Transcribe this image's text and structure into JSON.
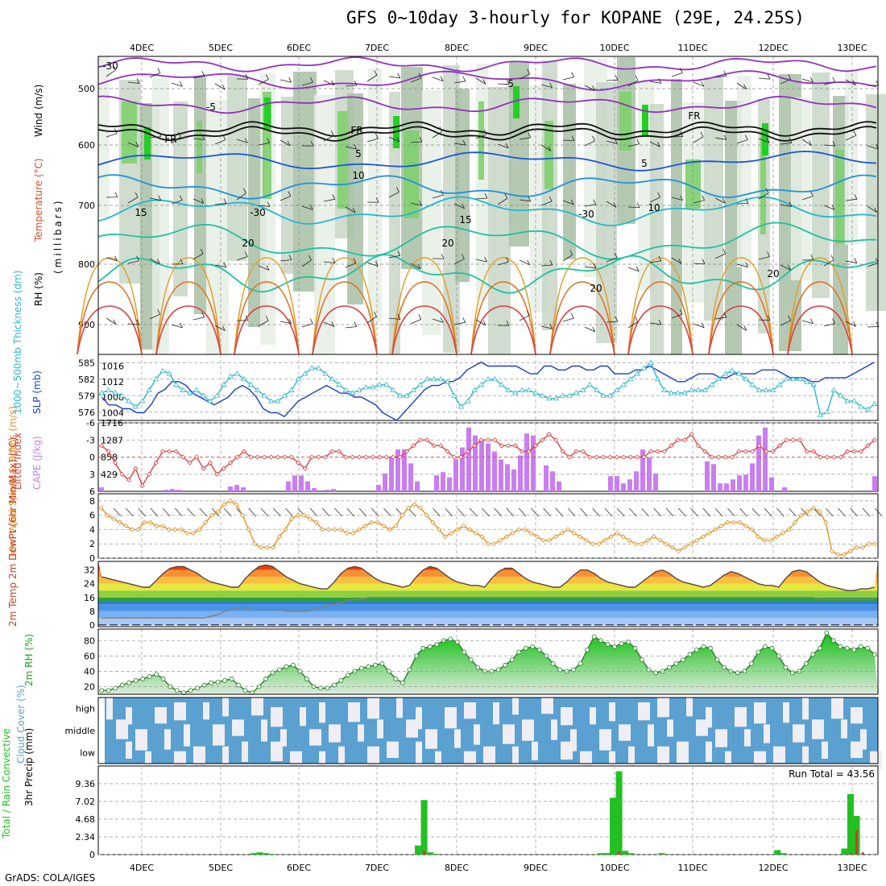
{
  "title": "GFS 0~10day 3-hourly for KOPANE (29E, 24.25S)",
  "footer": "GrADS: COLA/IGES",
  "run_total": "Run Total = 43.56",
  "colors": {
    "green_rh": "#22c022",
    "cape": "#c87ef0",
    "lifted": "#e04040",
    "slp": "#1a3fd0",
    "thick": "#30b8c8",
    "wind": "#e09020",
    "cloud": "#5aa0d0",
    "rain": "#22c022",
    "conv": "#e03030"
  },
  "chart_data": [
    {
      "type": "contour",
      "name": "upper",
      "xlabels": [
        "4DEC",
        "5DEC",
        "6DEC",
        "7DEC",
        "8DEC",
        "9DEC",
        "10DEC",
        "11DEC",
        "12DEC",
        "13DEC"
      ],
      "ylabel_parts": [
        "Wind (m/s)",
        "Temperature (°C)",
        "RH (%)",
        "(millibars)"
      ],
      "ticks": [
        "500",
        "600",
        "700",
        "800",
        "900"
      ],
      "contour_labels": [
        "-5",
        "-5",
        "FR",
        "FR",
        "FR",
        "5",
        "5",
        "10",
        "10",
        "15",
        "15",
        "20",
        "20",
        "20",
        "20",
        "-30",
        "-30",
        "-30"
      ]
    },
    {
      "type": "line",
      "name": "slp-thickness",
      "ylabel_left": "1000~500mb Thickness (dm)",
      "ylabel_right": "SLP (mb)",
      "ticks_left": [
        "585",
        "582",
        "579",
        "576"
      ],
      "ticks_right": [
        "1016",
        "1012",
        "1008",
        "1004"
      ],
      "slp": [
        1008,
        1006,
        1006,
        1005,
        1005,
        1004,
        1004,
        1006,
        1009,
        1010,
        1012,
        1012,
        1011,
        1009,
        1008,
        1007,
        1006,
        1007,
        1008,
        1010,
        1011,
        1010,
        1008,
        1005,
        1004,
        1004,
        1003,
        1005,
        1007,
        1008,
        1009,
        1010,
        1011,
        1010,
        1009,
        1009,
        1008,
        1008,
        1007,
        1006,
        1004,
        1003,
        1002,
        1004,
        1006,
        1008,
        1010,
        1011,
        1011,
        1012,
        1012,
        1013,
        1015,
        1016,
        1017,
        1016,
        1016,
        1016,
        1016,
        1016,
        1015,
        1014,
        1014,
        1016,
        1016,
        1015,
        1015,
        1016,
        1016,
        1015,
        1015,
        1016,
        1016,
        1014,
        1014,
        1014,
        1015,
        1015,
        1016,
        1015,
        1014,
        1013,
        1012,
        1012,
        1013,
        1014,
        1014,
        1014,
        1013,
        1013,
        1014,
        1014,
        1014,
        1014,
        1015,
        1015,
        1015,
        1014,
        1013,
        1013,
        1013,
        1012,
        1012,
        1013,
        1013,
        1013,
        1013,
        1014,
        1015,
        1016,
        1017
      ],
      "thickness": [
        579.5,
        580,
        579.5,
        579,
        578,
        577,
        578,
        580,
        582,
        583.5,
        583,
        581,
        580,
        579.5,
        580,
        579,
        578,
        579,
        581,
        582.5,
        583,
        582,
        581,
        580,
        579,
        578,
        578,
        579,
        580,
        582,
        583,
        584,
        584,
        583,
        582,
        581,
        580,
        579.5,
        580,
        580.5,
        580.5,
        581,
        581,
        580,
        579,
        579,
        580,
        581,
        582,
        582,
        582,
        581.5,
        579,
        577,
        578,
        580,
        581,
        582,
        582,
        581,
        580,
        579.5,
        580,
        580,
        579.5,
        579,
        578.5,
        578.5,
        579,
        579,
        579.5,
        580,
        581,
        580,
        579,
        579,
        580,
        581,
        582,
        583,
        584,
        585,
        582,
        580,
        579.5,
        579.5,
        579.5,
        580,
        580,
        580,
        581,
        582,
        583,
        583.5,
        583,
        582,
        581,
        580,
        580,
        580,
        581,
        582,
        582,
        582,
        581.5,
        581,
        575.5,
        576,
        580,
        579,
        578,
        578,
        577,
        576.5,
        577.5
      ]
    },
    {
      "type": "bar",
      "name": "cape-lifted",
      "ylabel_left": "Lifted Index",
      "ylabel_right": "CAPE (J/kg)",
      "ticks_left": [
        "-6",
        "-3",
        "0",
        "3",
        "6"
      ],
      "ticks_right": [
        "1716",
        "1287",
        "858",
        "429"
      ],
      "cape": [
        100,
        0,
        0,
        0,
        0,
        0,
        0,
        0,
        0,
        0,
        40,
        60,
        40,
        0,
        0,
        0,
        0,
        0,
        0,
        0,
        120,
        160,
        100,
        0,
        0,
        0,
        0,
        0,
        0,
        250,
        400,
        400,
        250,
        80,
        0,
        40,
        60,
        0,
        0,
        0,
        0,
        0,
        0,
        160,
        450,
        850,
        1050,
        1050,
        700,
        250,
        0,
        0,
        400,
        480,
        350,
        800,
        1100,
        1600,
        1400,
        1300,
        1200,
        1000,
        800,
        680,
        550,
        900,
        1450,
        1400,
        0,
        650,
        500,
        250,
        0,
        0,
        0,
        0,
        0,
        0,
        0,
        380,
        380,
        200,
        300,
        500,
        1050,
        850,
        450,
        0,
        0,
        0,
        0,
        0,
        0,
        0,
        750,
        680,
        200,
        200,
        300,
        400,
        420,
        700,
        1400,
        1600,
        350,
        0,
        100,
        0,
        0,
        0,
        0,
        0,
        0,
        0,
        0,
        0,
        0,
        0,
        0,
        0,
        380
      ],
      "lifted": [
        -2,
        -1,
        1,
        3,
        4,
        2,
        5,
        3,
        1,
        -1,
        -1,
        -1,
        0,
        1,
        0,
        2,
        1,
        3,
        2,
        1,
        0,
        -1,
        0,
        0,
        0,
        0,
        0,
        0,
        0,
        1,
        2,
        0,
        0,
        0,
        -1,
        -1,
        0,
        0,
        0,
        0,
        0,
        0,
        0,
        0,
        0,
        -1,
        -2,
        -3,
        -3,
        -2,
        -2,
        -1,
        0,
        0,
        -1,
        -2,
        -3,
        -3,
        -3,
        -2,
        -2,
        -2,
        -1,
        -1,
        -2,
        -3,
        -4,
        -3,
        -1,
        0,
        -1,
        -1,
        0,
        0,
        0,
        0,
        0,
        0,
        0,
        0,
        0,
        -1,
        -1,
        -1,
        -2,
        -3,
        -3,
        -4,
        -2,
        -1,
        0,
        0,
        0,
        0,
        -1,
        -1,
        -1,
        -2,
        -1,
        -1,
        -2,
        -3,
        -3,
        -3,
        -1,
        -1,
        0,
        0,
        0,
        0,
        -1,
        -1,
        -1,
        -2,
        -3
      ]
    },
    {
      "type": "line",
      "name": "wind10m",
      "ylabel": "10m Wind Speed & Barbs (m/s)",
      "ticks": [
        "8",
        "6",
        "4",
        "2",
        "0"
      ],
      "speed": [
        7,
        6,
        5.5,
        5,
        4.5,
        4,
        4,
        5,
        5,
        4.5,
        4.5,
        4,
        4,
        4,
        3.5,
        3.5,
        4,
        5,
        6,
        6.5,
        7.5,
        8,
        7.5,
        6,
        4,
        2,
        1.5,
        1.5,
        1.5,
        3,
        4,
        5.5,
        6,
        6,
        5.5,
        5,
        4,
        4,
        4,
        4,
        3.5,
        3.5,
        4,
        4.5,
        5,
        5,
        4.5,
        4,
        4.5,
        6,
        7,
        7.5,
        7,
        6,
        5,
        4,
        3,
        3.5,
        4,
        4.5,
        4,
        3.5,
        3,
        2,
        2,
        2.5,
        3,
        3.5,
        4,
        4,
        3.5,
        3,
        2.5,
        2.5,
        3,
        3.5,
        4,
        3.5,
        3,
        2.5,
        2,
        2,
        2.5,
        3,
        3.5,
        3,
        2.5,
        2,
        2,
        2.5,
        3,
        2.5,
        2,
        1.5,
        1,
        1.5,
        2,
        2.5,
        3,
        3.5,
        4,
        4.5,
        5,
        5,
        5,
        4.5,
        4,
        3,
        2.5,
        2.5,
        3,
        3.5,
        4,
        5,
        6,
        6.5,
        7,
        6.5,
        5,
        1,
        0.5,
        0.5,
        1,
        1.5,
        1.5,
        2,
        2
      ]
    },
    {
      "type": "line",
      "name": "temp2m",
      "ylabel": "2m Temp 2m DewPt (6hr Min/Max) (°C)",
      "ticks": [
        "32",
        "24",
        "16",
        "8",
        "0"
      ],
      "temp": [
        28,
        27,
        26,
        25,
        24,
        23,
        22,
        22,
        26,
        30,
        33,
        34,
        34,
        32,
        30,
        27,
        25,
        24,
        23,
        22,
        22,
        27,
        31,
        34,
        35,
        34,
        31,
        28,
        26,
        24,
        23,
        22,
        21,
        21,
        25,
        30,
        33,
        34,
        33,
        30,
        27,
        25,
        24,
        23,
        22,
        23,
        28,
        32,
        34,
        33,
        30,
        27,
        25,
        24,
        23,
        23,
        22,
        27,
        31,
        33,
        33,
        30,
        27,
        25,
        24,
        23,
        22,
        22,
        25,
        29,
        32,
        32,
        30,
        27,
        25,
        24,
        23,
        22,
        22,
        25,
        28,
        31,
        32,
        30,
        27,
        25,
        24,
        23,
        22,
        23,
        26,
        29,
        31,
        30,
        28,
        26,
        24,
        23,
        23,
        22,
        27,
        31,
        32,
        31,
        28,
        25,
        23,
        22,
        21,
        20,
        20,
        21,
        21,
        22
      ],
      "dewpt": [
        4,
        4,
        4,
        4,
        4,
        4,
        4,
        4,
        4,
        4,
        4,
        4,
        4,
        4,
        4,
        4,
        5,
        6,
        8,
        9,
        10,
        10,
        9,
        9,
        9,
        9,
        9,
        8,
        8,
        8,
        8,
        9,
        10,
        11,
        12,
        13,
        14,
        15,
        15,
        16,
        16,
        16,
        16,
        16,
        16,
        16,
        16,
        16,
        16,
        16,
        16,
        16,
        16,
        16,
        16,
        16,
        16,
        16,
        16,
        16,
        16,
        16,
        16,
        16,
        16,
        16,
        16,
        16,
        16,
        16,
        16,
        16,
        16,
        16,
        16,
        16,
        16,
        16,
        16,
        16,
        16,
        16,
        16,
        16,
        16,
        16,
        16,
        16,
        16,
        16,
        16,
        16,
        16,
        16,
        16,
        16,
        16,
        16,
        16,
        16,
        16,
        16,
        16,
        16,
        16,
        15,
        15,
        15,
        15,
        15,
        15,
        15,
        15,
        15
      ]
    },
    {
      "type": "area",
      "name": "rh2m",
      "ylabel": "2m RH (%)",
      "ticks": [
        "80",
        "60",
        "40",
        "20"
      ],
      "rh": [
        15,
        15,
        18,
        22,
        25,
        28,
        30,
        33,
        36,
        30,
        20,
        15,
        12,
        15,
        18,
        22,
        25,
        26,
        28,
        30,
        22,
        15,
        12,
        20,
        30,
        38,
        42,
        46,
        48,
        40,
        30,
        20,
        18,
        18,
        22,
        28,
        35,
        40,
        44,
        46,
        48,
        50,
        40,
        30,
        25,
        42,
        60,
        70,
        72,
        75,
        80,
        82,
        78,
        65,
        55,
        45,
        40,
        40,
        42,
        48,
        55,
        65,
        70,
        72,
        68,
        60,
        50,
        42,
        40,
        42,
        50,
        68,
        85,
        80,
        75,
        72,
        76,
        78,
        70,
        55,
        42,
        38,
        40,
        45,
        50,
        55,
        62,
        68,
        72,
        70,
        55,
        45,
        40,
        38,
        40,
        50,
        65,
        72,
        70,
        60,
        45,
        38,
        40,
        50,
        62,
        70,
        90,
        80,
        72,
        70,
        68,
        72,
        70,
        62
      ]
    },
    {
      "type": "heatmap",
      "name": "cloud",
      "ylabel": "Cloud Cover (%)",
      "levels": [
        "high",
        "middle",
        "low"
      ]
    },
    {
      "type": "bar",
      "name": "precip",
      "ylabel_left": "Total / Rain Convective",
      "ylabel_right": "3hr Precip (mm)",
      "ticks": [
        "9.36",
        "7.02",
        "4.68",
        "2.34",
        "0"
      ],
      "total": [
        0,
        0,
        0,
        0,
        0,
        0,
        0,
        0,
        0,
        0,
        0,
        0,
        0,
        0,
        0,
        0,
        0,
        0,
        0,
        0,
        0,
        0,
        0,
        0,
        0,
        0.2,
        0.3,
        0.2,
        0.1,
        0,
        0,
        0,
        0,
        0,
        0,
        0,
        0,
        0,
        0,
        0,
        0,
        0,
        0,
        0,
        0,
        0,
        0,
        0,
        0,
        0,
        0,
        0,
        1.2,
        7.2,
        0.3,
        0.1,
        0,
        0,
        0,
        0,
        0,
        0,
        0,
        0,
        0,
        0,
        0,
        0,
        0,
        0,
        0,
        0,
        0,
        0,
        0,
        0,
        0,
        0,
        0,
        0,
        0,
        0,
        0.2,
        0.2,
        7.5,
        11.0,
        0.5,
        0.2,
        0,
        0,
        0,
        0,
        0.2,
        0,
        0,
        0,
        0,
        0,
        0,
        0,
        0,
        0,
        0,
        0,
        0,
        0,
        0,
        0,
        0,
        0,
        0,
        0.6,
        0.2,
        0,
        0,
        0,
        0,
        0,
        0,
        0,
        0,
        0,
        0.8,
        8.0,
        5.1,
        0,
        0,
        0
      ],
      "conv": [
        0,
        0,
        0,
        0,
        0,
        0,
        0,
        0,
        0,
        0,
        0,
        0,
        0,
        0,
        0,
        0,
        0,
        0,
        0,
        0,
        0,
        0,
        0,
        0,
        0,
        0,
        0,
        0,
        0,
        0,
        0,
        0,
        0,
        0,
        0,
        0,
        0,
        0,
        0,
        0,
        0,
        0,
        0,
        0,
        0,
        0,
        0,
        0,
        0,
        0,
        0,
        0,
        0,
        0.5,
        0,
        0,
        0,
        0,
        0,
        0,
        0,
        0,
        0,
        0,
        0,
        0,
        0,
        0,
        0,
        0,
        0,
        0,
        0,
        0,
        0,
        0,
        0,
        0,
        0,
        0,
        0,
        0,
        0,
        0,
        0,
        0.4,
        0,
        0,
        0,
        0,
        0,
        0,
        0,
        0,
        0,
        0,
        0,
        0,
        0,
        0,
        0,
        0,
        0,
        0,
        0,
        0,
        0,
        0,
        0,
        0,
        0,
        0,
        0,
        0,
        0,
        0,
        0,
        0,
        0,
        0,
        0,
        0,
        0,
        0.2,
        3.2,
        0.3,
        0,
        0,
        0
      ]
    }
  ]
}
